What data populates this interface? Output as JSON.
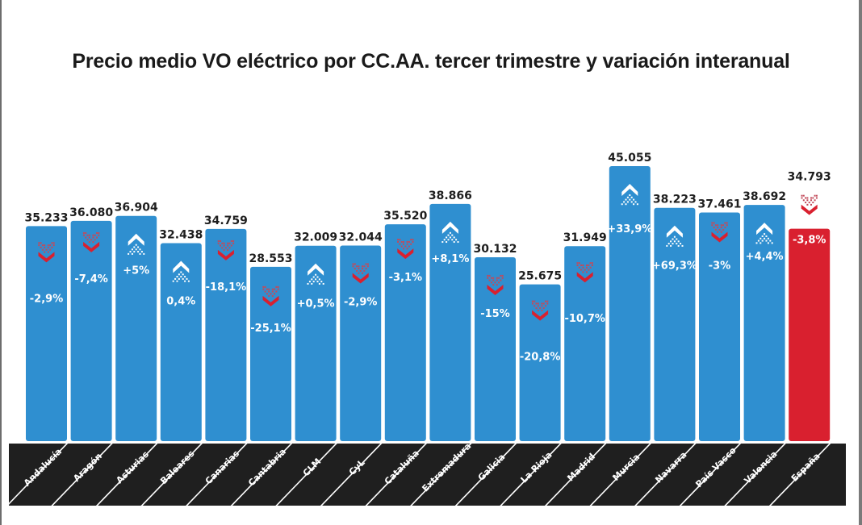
{
  "colors": {
    "bar_blue": "#2f8fd0",
    "bar_red": "#d9202f",
    "arrow_red": "#d9202f",
    "arrow_white": "#ffffff",
    "band_black": "#1f1f1f",
    "text_dark": "#1e1e1e"
  },
  "chart_data": {
    "type": "bar",
    "title": "Precio medio VO eléctrico por CC.AA. tercer trimestre y variación interanual",
    "xlabel": "",
    "ylabel": "",
    "ylim": [
      0,
      46
    ],
    "grid": false,
    "legend": "none",
    "categories": [
      "Andalucía",
      "Aragón",
      "Asturias",
      "Baleares",
      "Canarias",
      "Cantabria",
      "CLM",
      "CyL",
      "Cataluña",
      "Extremadura",
      "Galicia",
      "La Rioja",
      "Madrid",
      "Murcia",
      "Navarra",
      "País Vasco",
      "Valencia",
      "España"
    ],
    "values": [
      35.233,
      36.08,
      36.904,
      32.438,
      34.759,
      28.553,
      32.009,
      32.044,
      35.52,
      38.866,
      30.132,
      25.675,
      31.949,
      45.055,
      38.223,
      37.461,
      38.692,
      34.793
    ],
    "value_labels": [
      "35.233",
      "36.080",
      "36.904",
      "32.438",
      "34.759",
      "28.553",
      "32.009",
      "32.044",
      "35.520",
      "38.866",
      "30.132",
      "25.675",
      "31.949",
      "45.055",
      "38.223",
      "37.461",
      "38.692",
      "34.793"
    ],
    "yoy_change_labels": [
      "-2,9%",
      "-7,4%",
      "+5%",
      "0,4%",
      "-18,1%",
      "-25,1%",
      "+0,5%",
      "-2,9%",
      "-3,1%",
      "+8,1%",
      "-15%",
      "-20,8%",
      "-10,7%",
      "+33,9%",
      "+69,3%",
      "-3%",
      "+4,4%",
      "-3,8%"
    ],
    "yoy_change_percent": [
      -2.9,
      -7.4,
      5.0,
      0.4,
      -18.1,
      -25.1,
      0.5,
      -2.9,
      -3.1,
      8.1,
      -15.0,
      -20.8,
      -10.7,
      33.9,
      69.3,
      -3.0,
      4.4,
      -3.8
    ],
    "trend_direction": [
      "down",
      "down",
      "up",
      "up",
      "down",
      "down",
      "up",
      "down",
      "down",
      "up",
      "down",
      "down",
      "down",
      "up",
      "up",
      "down",
      "up",
      "down"
    ],
    "highlight": [
      "blue",
      "blue",
      "blue",
      "blue",
      "blue",
      "blue",
      "blue",
      "blue",
      "blue",
      "blue",
      "blue",
      "blue",
      "blue",
      "blue",
      "blue",
      "blue",
      "blue",
      "red"
    ],
    "icons": {
      "up": "arrow-up-icon",
      "down": "arrow-down-icon"
    }
  }
}
